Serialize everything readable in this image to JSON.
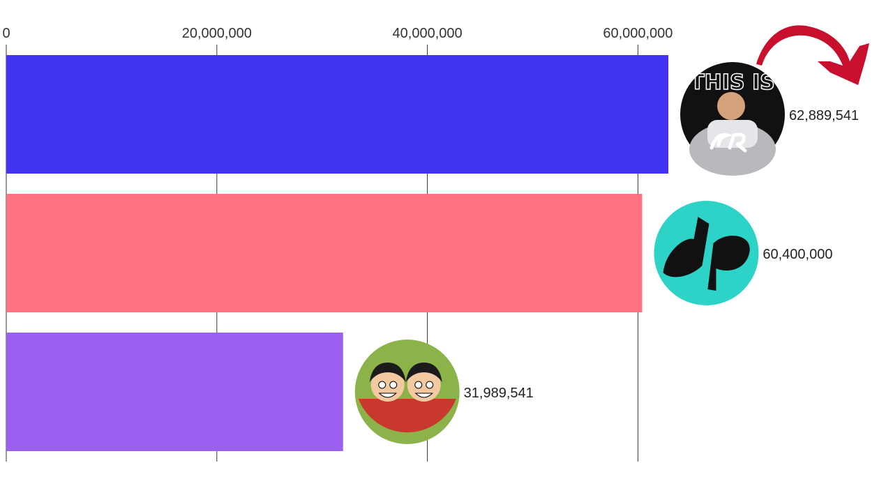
{
  "chart_data": {
    "type": "bar",
    "orientation": "horizontal",
    "xlim": [
      0,
      62889541
    ],
    "x_ticks": [
      {
        "value": 0,
        "label": "0"
      },
      {
        "value": 20000000,
        "label": "20,000,000"
      },
      {
        "value": 40000000,
        "label": "40,000,000"
      },
      {
        "value": 60000000,
        "label": "60,000,000"
      }
    ],
    "bars": [
      {
        "value": 62889541,
        "label": "62,889,541",
        "color": "#4234f2",
        "avatar": "cristiano-channel-avatar",
        "avatar_text": "THIS IS"
      },
      {
        "value": 60400000,
        "label": "60,400,000",
        "color": "#ff7283",
        "avatar": "dude-perfect-avatar",
        "avatar_text": ""
      },
      {
        "value": 31989541,
        "label": "31,989,541",
        "color": "#9d5fef",
        "avatar": "anime-channel-avatar",
        "avatar_text": ""
      }
    ],
    "annotation": {
      "icon": "red-curved-arrow-icon",
      "color": "#c8102e"
    },
    "grid": true
  }
}
